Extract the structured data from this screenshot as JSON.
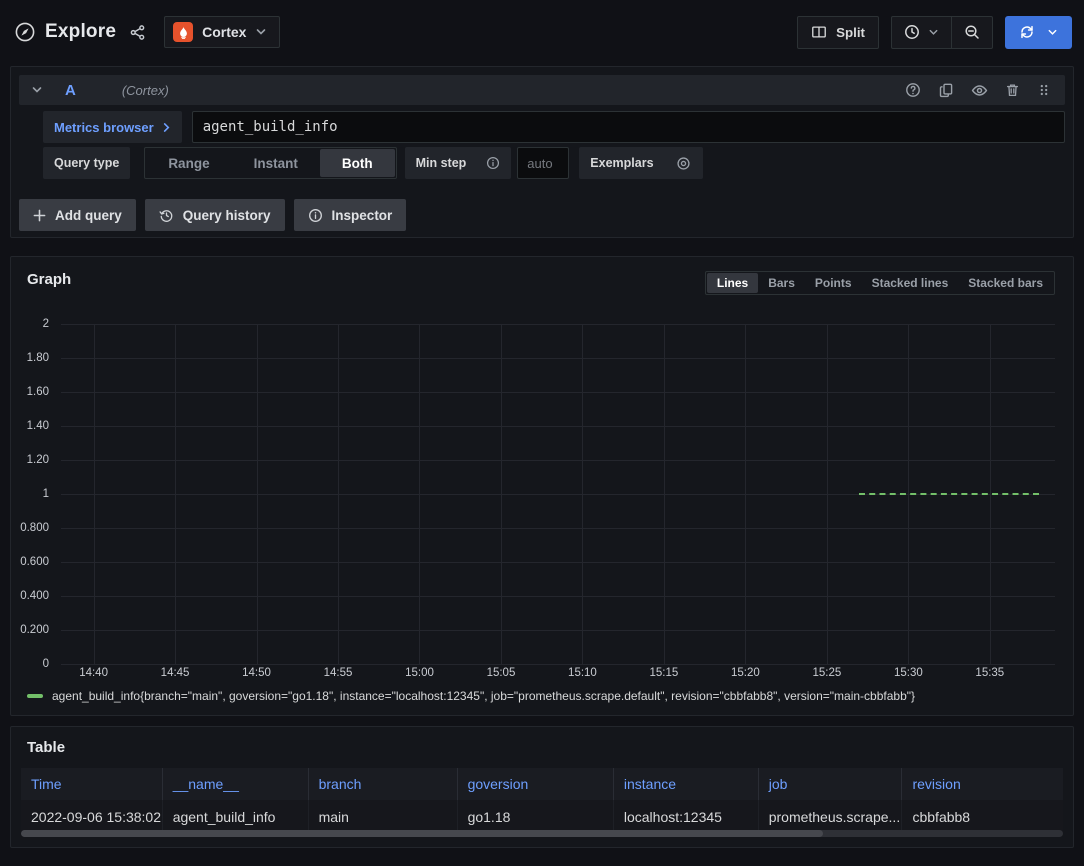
{
  "topbar": {
    "title": "Explore",
    "datasource": {
      "name": "Cortex"
    },
    "split_label": "Split"
  },
  "query_editor": {
    "ref_id": "A",
    "datasource_hint": "(Cortex)",
    "metrics_browser_label": "Metrics browser",
    "query_expression": "agent_build_info",
    "query_type_label": "Query type",
    "query_type_options": [
      "Range",
      "Instant",
      "Both"
    ],
    "query_type_selected": "Both",
    "min_step_label": "Min step",
    "min_step_placeholder": "auto",
    "exemplars_label": "Exemplars",
    "add_query_label": "Add query",
    "query_history_label": "Query history",
    "inspector_label": "Inspector"
  },
  "graph_panel": {
    "title": "Graph",
    "modes": [
      "Lines",
      "Bars",
      "Points",
      "Stacked lines",
      "Stacked bars"
    ],
    "selected_mode": "Lines"
  },
  "chart_data": {
    "type": "line",
    "title": "Graph",
    "x_min": "14:38",
    "x_max": "15:39",
    "ylim": [
      0,
      2
    ],
    "yticks": [
      "2",
      "1.80",
      "1.60",
      "1.40",
      "1.20",
      "1",
      "0.800",
      "0.600",
      "0.400",
      "0.200",
      "0"
    ],
    "ytick_values": [
      2,
      1.8,
      1.6,
      1.4,
      1.2,
      1,
      0.8,
      0.6,
      0.4,
      0.2,
      0
    ],
    "xticks": [
      "14:40",
      "14:45",
      "14:50",
      "14:55",
      "15:00",
      "15:05",
      "15:10",
      "15:15",
      "15:20",
      "15:25",
      "15:30",
      "15:35"
    ],
    "grid": true,
    "legend_position": "bottom",
    "series": [
      {
        "name": "agent_build_info{branch=\"main\", goversion=\"go1.18\", instance=\"localhost:12345\", job=\"prometheus.scrape.default\", revision=\"cbbfabb8\", version=\"main-cbbfabb\"}",
        "color": "#73bf69",
        "value": 1,
        "x_start": "15:27",
        "x_end": "15:38"
      }
    ]
  },
  "table_panel": {
    "title": "Table",
    "columns": [
      "Time",
      "__name__",
      "branch",
      "goversion",
      "instance",
      "job",
      "revision"
    ],
    "rows": [
      [
        "2022-09-06 15:38:02",
        "agent_build_info",
        "main",
        "go1.18",
        "localhost:12345",
        "prometheus.scrape....",
        "cbbfabb8"
      ]
    ]
  },
  "colors": {
    "accent_blue": "#3d73dc",
    "link_blue": "#6e9fff",
    "series_green": "#73bf69",
    "prometheus_orange": "#e6522c"
  }
}
